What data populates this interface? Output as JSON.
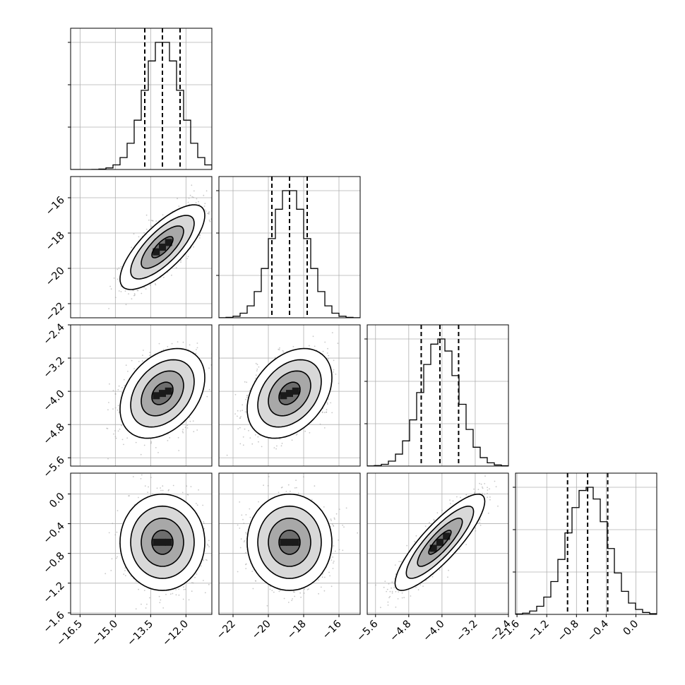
{
  "chart_data": {
    "type": "corner",
    "colors": {
      "contour": "#000000",
      "points": "#9a9a9a",
      "density": "#000000",
      "grid": "#b0b0b0"
    },
    "grid": true,
    "parameters": [
      {
        "mean": -13.0,
        "std": 0.75,
        "quantiles": [
          -13.75,
          -13.0,
          -12.25
        ],
        "ticks": [
          -16.5,
          -15.0,
          -13.5,
          -12.0
        ],
        "tick_labels": [
          "−16.5",
          "−15.0",
          "−13.5",
          "−12.0"
        ],
        "range": [
          -16.9,
          -10.9
        ]
      },
      {
        "mean": -18.8,
        "std": 1.0,
        "quantiles": [
          -19.8,
          -18.8,
          -17.8
        ],
        "ticks": [
          -22,
          -20,
          -18,
          -16
        ],
        "tick_labels": [
          "−22",
          "−20",
          "−18",
          "−16"
        ],
        "range": [
          -22.8,
          -14.8
        ]
      },
      {
        "mean": -4.05,
        "std": 0.45,
        "quantiles": [
          -4.5,
          -4.05,
          -3.6
        ],
        "ticks": [
          -5.6,
          -4.8,
          -4.0,
          -3.2,
          -2.4
        ],
        "tick_labels": [
          "−5.6",
          "−4.8",
          "−4.0",
          "−3.2",
          "−2.4"
        ],
        "range": [
          -5.8,
          -2.4
        ]
      },
      {
        "mean": -0.65,
        "std": 0.27,
        "quantiles": [
          -0.92,
          -0.65,
          -0.38
        ],
        "ticks": [
          -1.6,
          -1.2,
          -0.8,
          -0.4,
          0.0
        ],
        "tick_labels": [
          "−1.6",
          "−1.2",
          "−0.8",
          "−0.4",
          "0.0"
        ],
        "range": [
          -1.62,
          0.28
        ]
      }
    ],
    "correlations": [
      [
        1.0,
        0.75,
        0.35,
        0.0
      ],
      [
        0.75,
        1.0,
        0.35,
        0.0
      ],
      [
        0.35,
        0.35,
        1.0,
        0.85
      ],
      [
        0.0,
        0.0,
        0.85,
        1.0
      ]
    ],
    "histogram_bins": 20,
    "contour_levels_sigma": [
      0.5,
      1.0,
      1.5,
      2.0
    ]
  }
}
